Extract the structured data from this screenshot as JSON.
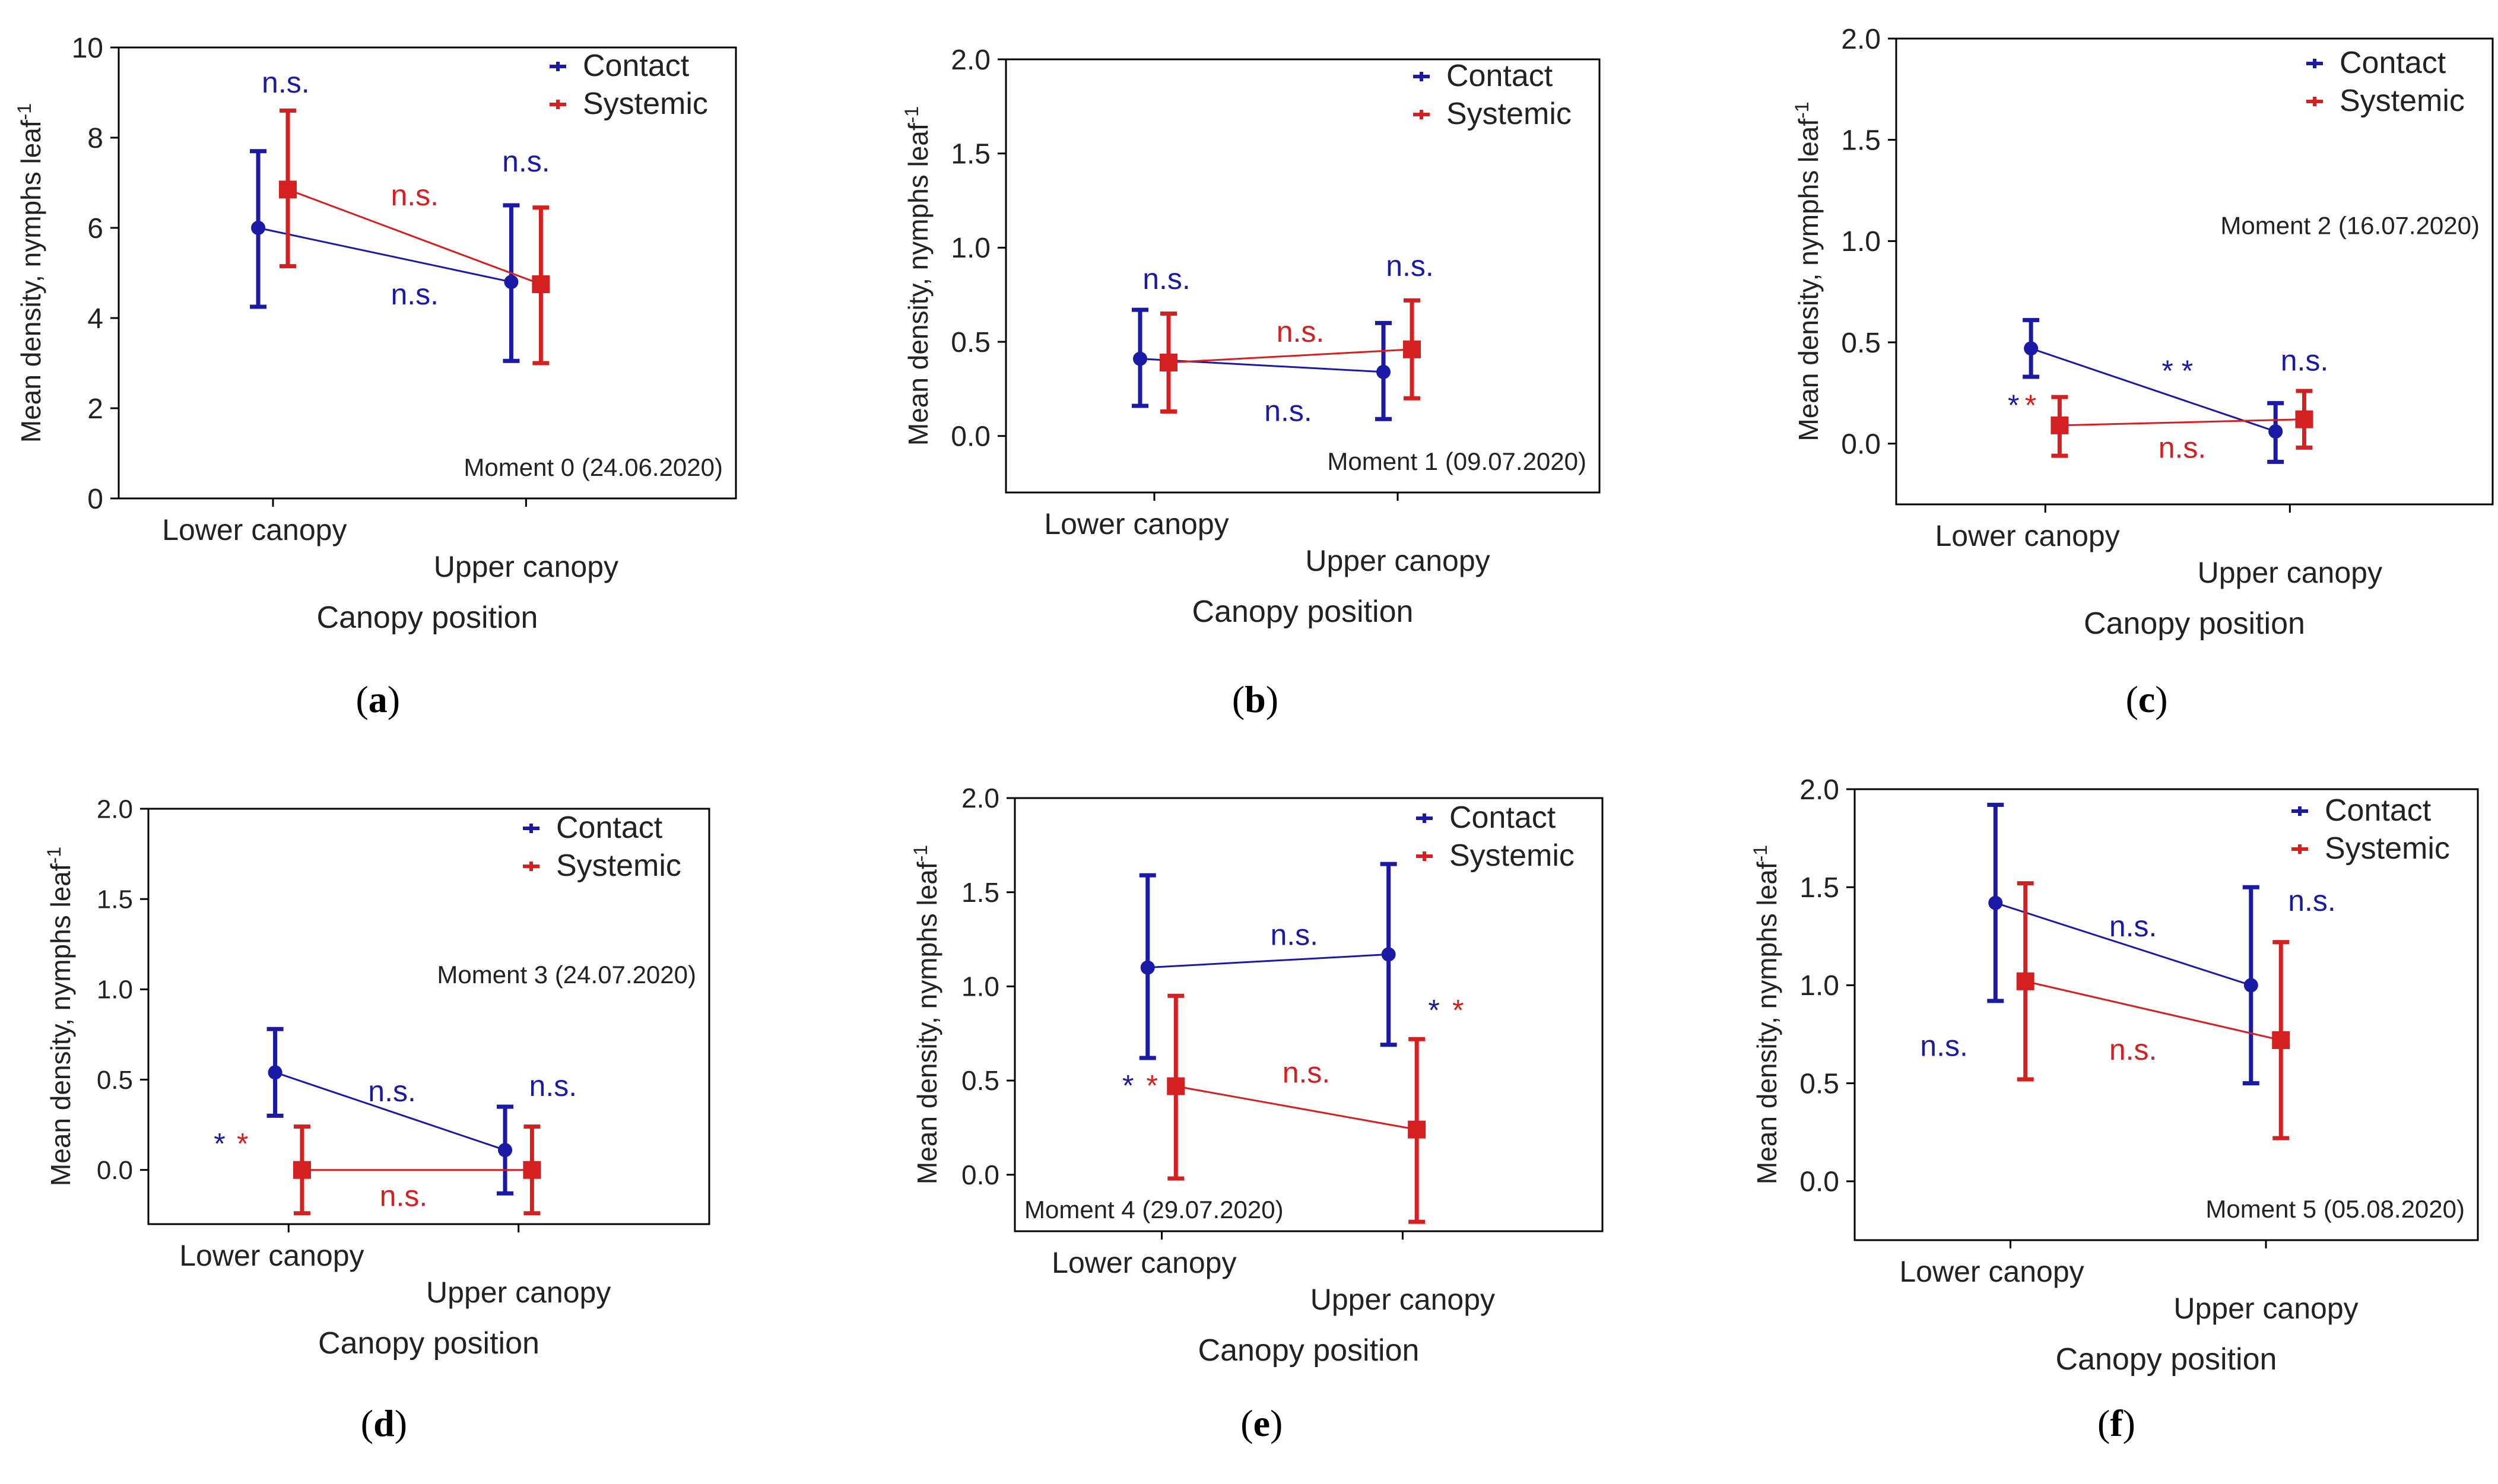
{
  "figure": {
    "legend": {
      "contact": "Contact",
      "systemic": "Systemic"
    },
    "colors": {
      "contact": "#1a1aa6",
      "systemic": "#d42020",
      "axis": "#000000",
      "text": "#222222"
    },
    "ylabel_main": "Mean density, nymphs leaf",
    "ylabel_sup": "-1",
    "xlabel": "Canopy position",
    "categories": [
      "Lower canopy",
      "Upper canopy"
    ]
  },
  "chart_data": [
    {
      "id": "a",
      "type": "line",
      "panel_label": "a",
      "moment": "Moment 0 (24.06.2020)",
      "moment_pos": "bottom-right",
      "ylim": [
        0,
        10
      ],
      "yticks": [
        0,
        2,
        4,
        6,
        8,
        10
      ],
      "ytick_labels": [
        "0",
        "2",
        "4",
        "6",
        "8",
        "10"
      ],
      "categories": [
        "Lower canopy",
        "Upper canopy"
      ],
      "series": [
        {
          "name": "Contact",
          "values": [
            6.0,
            4.8
          ],
          "err_low": [
            4.25,
            3.05
          ],
          "err_high": [
            7.7,
            6.5
          ]
        },
        {
          "name": "Systemic",
          "values": [
            6.85,
            4.75
          ],
          "err_low": [
            5.15,
            3.0
          ],
          "err_high": [
            8.6,
            6.45
          ]
        }
      ],
      "annotations": [
        {
          "text": "n.s.",
          "color": "contact",
          "x": 0.05,
          "y": 9.0
        },
        {
          "text": "n.s.",
          "color": "systemic",
          "x": 0.56,
          "y": 6.5
        },
        {
          "text": "n.s.",
          "color": "contact",
          "x": 0.56,
          "y": 4.3
        },
        {
          "text": "n.s.",
          "color": "contact",
          "x": 1.0,
          "y": 7.25
        }
      ]
    },
    {
      "id": "b",
      "type": "line",
      "panel_label": "b",
      "moment": "Moment 1 (09.07.2020)",
      "moment_pos": "bottom-right",
      "ylim": [
        -0.3,
        2.0
      ],
      "yticks": [
        0,
        0.5,
        1.0,
        1.5,
        2.0
      ],
      "ytick_labels": [
        "0.0",
        "0.5",
        "1.0",
        "1.5",
        "2.0"
      ],
      "categories": [
        "Lower canopy",
        "Upper canopy"
      ],
      "series": [
        {
          "name": "Contact",
          "values": [
            0.41,
            0.34
          ],
          "err_low": [
            0.16,
            0.09
          ],
          "err_high": [
            0.67,
            0.6
          ]
        },
        {
          "name": "Systemic",
          "values": [
            0.39,
            0.46
          ],
          "err_low": [
            0.13,
            0.2
          ],
          "err_high": [
            0.65,
            0.72
          ]
        }
      ],
      "annotations": [
        {
          "text": "n.s.",
          "color": "contact",
          "x": 0.05,
          "y": 0.78
        },
        {
          "text": "n.s.",
          "color": "systemic",
          "x": 0.6,
          "y": 0.5
        },
        {
          "text": "n.s.",
          "color": "contact",
          "x": 0.55,
          "y": 0.08
        },
        {
          "text": "n.s.",
          "color": "contact",
          "x": 1.05,
          "y": 0.85
        }
      ]
    },
    {
      "id": "c",
      "type": "line",
      "panel_label": "c",
      "moment": "Moment 2 (16.07.2020)",
      "moment_pos": "middle-right",
      "ylim": [
        -0.3,
        2.0
      ],
      "yticks": [
        0,
        0.5,
        1.0,
        1.5,
        2.0
      ],
      "ytick_labels": [
        "0.0",
        "0.5",
        "1.0",
        "1.5",
        "2.0"
      ],
      "categories": [
        "Lower canopy",
        "Upper canopy"
      ],
      "series": [
        {
          "name": "Contact",
          "values": [
            0.47,
            0.06
          ],
          "err_low": [
            0.33,
            -0.09
          ],
          "err_high": [
            0.61,
            0.2
          ]
        },
        {
          "name": "Systemic",
          "values": [
            0.09,
            0.12
          ],
          "err_low": [
            -0.06,
            -0.02
          ],
          "err_high": [
            0.23,
            0.26
          ]
        }
      ],
      "annotations": [
        {
          "text": "* *",
          "color": "contact",
          "x": 0.54,
          "y": 0.31
        },
        {
          "text": "*",
          "color": "contact",
          "x": -0.13,
          "y": 0.14
        },
        {
          "text": "*",
          "color": "systemic",
          "x": -0.06,
          "y": 0.14
        },
        {
          "text": "n.s.",
          "color": "systemic",
          "x": 0.56,
          "y": -0.07
        },
        {
          "text": "n.s.",
          "color": "contact",
          "x": 1.06,
          "y": 0.36
        }
      ]
    },
    {
      "id": "d",
      "type": "line",
      "panel_label": "d",
      "moment": "Moment 3 (24.07.2020)",
      "moment_pos": "middle-right",
      "ylim": [
        -0.3,
        2.0
      ],
      "yticks": [
        0,
        0.5,
        1.0,
        1.5,
        2.0
      ],
      "ytick_labels": [
        "0.0",
        "0.5",
        "1.0",
        "1.5",
        "2.0"
      ],
      "categories": [
        "Lower canopy",
        "Upper canopy"
      ],
      "series": [
        {
          "name": "Contact",
          "values": [
            0.54,
            0.11
          ],
          "err_low": [
            0.3,
            -0.13
          ],
          "err_high": [
            0.78,
            0.35
          ]
        },
        {
          "name": "Systemic",
          "values": [
            0.0,
            0.0
          ],
          "err_low": [
            -0.24,
            -0.24
          ],
          "err_high": [
            0.24,
            0.24
          ]
        }
      ],
      "annotations": [
        {
          "text": "n.s.",
          "color": "contact",
          "x": 0.45,
          "y": 0.38
        },
        {
          "text": "n.s.",
          "color": "contact",
          "x": 1.15,
          "y": 0.41
        },
        {
          "text": "*",
          "color": "contact",
          "x": -0.3,
          "y": 0.09
        },
        {
          "text": "*",
          "color": "systemic",
          "x": -0.2,
          "y": 0.09
        },
        {
          "text": "n.s.",
          "color": "systemic",
          "x": 0.5,
          "y": -0.2
        }
      ]
    },
    {
      "id": "e",
      "type": "line",
      "panel_label": "e",
      "moment": "Moment 4 (29.07.2020)",
      "moment_pos": "bottom-left",
      "ylim": [
        -0.3,
        2.0
      ],
      "yticks": [
        0,
        0.5,
        1.0,
        1.5,
        2.0
      ],
      "ytick_labels": [
        "0.0",
        "0.5",
        "1.0",
        "1.5",
        "2.0"
      ],
      "categories": [
        "Lower canopy",
        "Upper canopy"
      ],
      "series": [
        {
          "name": "Contact",
          "values": [
            1.1,
            1.17
          ],
          "err_low": [
            0.62,
            0.69
          ],
          "err_high": [
            1.59,
            1.65
          ]
        },
        {
          "name": "Systemic",
          "values": [
            0.47,
            0.24
          ],
          "err_low": [
            -0.02,
            -0.25
          ],
          "err_high": [
            0.95,
            0.72
          ]
        }
      ],
      "annotations": [
        {
          "text": "n.s.",
          "color": "contact",
          "x": 0.55,
          "y": 1.22
        },
        {
          "text": "n.s.",
          "color": "systemic",
          "x": 0.6,
          "y": 0.49
        },
        {
          "text": "*",
          "color": "contact",
          "x": -0.14,
          "y": 0.42
        },
        {
          "text": "*",
          "color": "systemic",
          "x": -0.04,
          "y": 0.42
        },
        {
          "text": "*",
          "color": "contact",
          "x": 1.13,
          "y": 0.82
        },
        {
          "text": "*",
          "color": "systemic",
          "x": 1.23,
          "y": 0.82
        }
      ]
    },
    {
      "id": "f",
      "type": "line",
      "panel_label": "f",
      "moment": "Moment 5 (05.08.2020)",
      "moment_pos": "bottom-right",
      "ylim": [
        -0.3,
        2.0
      ],
      "yticks": [
        0,
        0.5,
        1.0,
        1.5,
        2.0
      ],
      "ytick_labels": [
        "0.0",
        "0.5",
        "1.0",
        "1.5",
        "2.0"
      ],
      "categories": [
        "Lower canopy",
        "Upper canopy"
      ],
      "series": [
        {
          "name": "Contact",
          "values": [
            1.42,
            1.0
          ],
          "err_low": [
            0.92,
            0.5
          ],
          "err_high": [
            1.92,
            1.5
          ]
        },
        {
          "name": "Systemic",
          "values": [
            1.02,
            0.72
          ],
          "err_low": [
            0.52,
            0.22
          ],
          "err_high": [
            1.52,
            1.22
          ]
        }
      ],
      "annotations": [
        {
          "text": "n.s.",
          "color": "contact",
          "x": 0.48,
          "y": 1.25
        },
        {
          "text": "n.s.",
          "color": "systemic",
          "x": 0.48,
          "y": 0.62
        },
        {
          "text": "n.s.",
          "color": "contact",
          "x": -0.26,
          "y": 0.64
        },
        {
          "text": "n.s.",
          "color": "contact",
          "x": 1.18,
          "y": 1.38
        }
      ]
    }
  ]
}
